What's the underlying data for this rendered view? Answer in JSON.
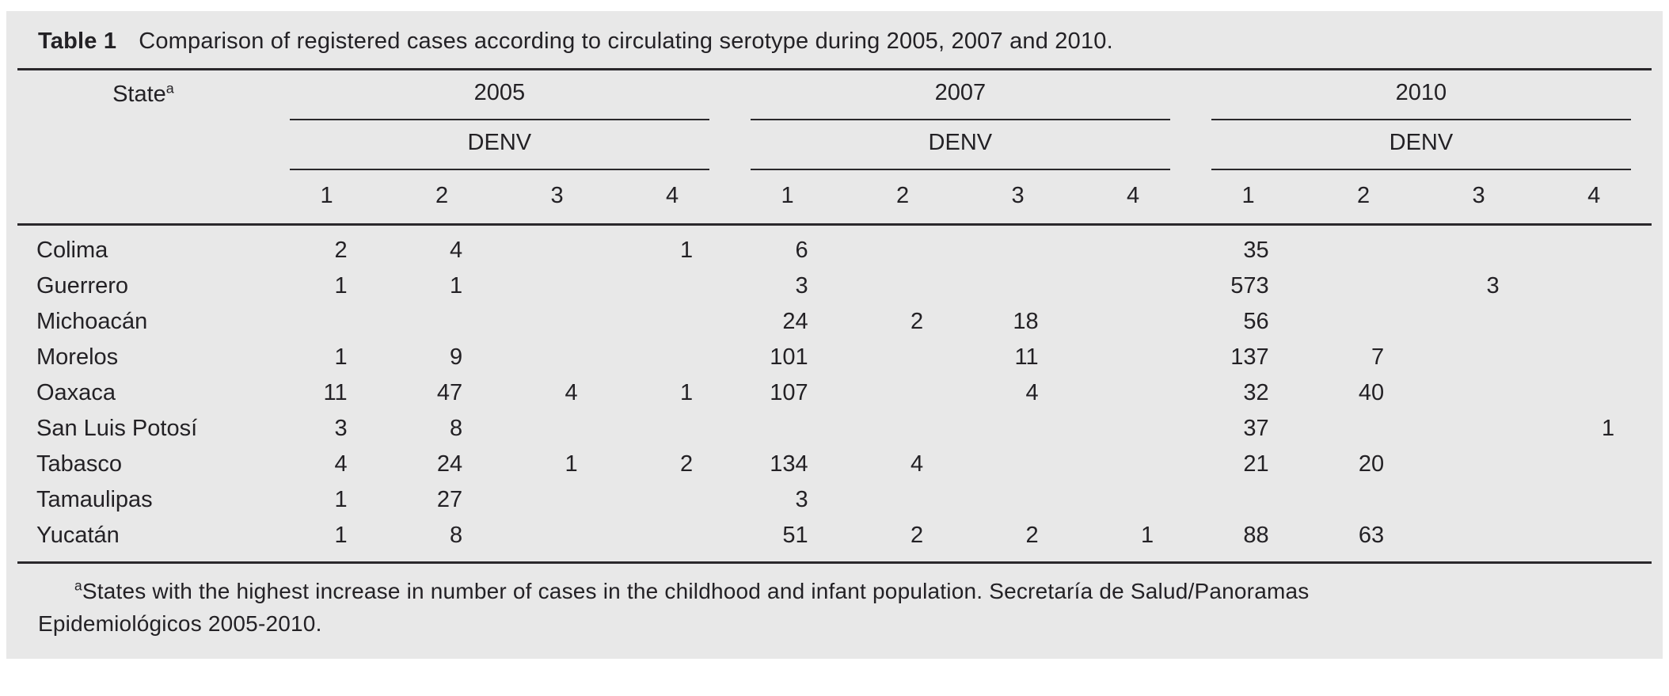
{
  "caption": {
    "label": "Table 1",
    "text": "Comparison of registered cases according to circulating serotype during 2005, 2007 and 2010."
  },
  "table": {
    "state_header": {
      "label": "State",
      "sup": "a"
    },
    "year_groups": [
      {
        "year": "2005",
        "sub": "DENV",
        "serotypes": [
          "1",
          "2",
          "3",
          "4"
        ]
      },
      {
        "year": "2007",
        "sub": "DENV",
        "serotypes": [
          "1",
          "2",
          "3",
          "4"
        ]
      },
      {
        "year": "2010",
        "sub": "DENV",
        "serotypes": [
          "1",
          "2",
          "3",
          "4"
        ]
      }
    ],
    "rows": [
      {
        "state": "Colima",
        "values": [
          "2",
          "4",
          "",
          "1",
          "6",
          "",
          "",
          "",
          "35",
          "",
          "",
          ""
        ]
      },
      {
        "state": "Guerrero",
        "values": [
          "1",
          "1",
          "",
          "",
          "3",
          "",
          "",
          "",
          "573",
          "",
          "3",
          ""
        ]
      },
      {
        "state": "Michoacán",
        "values": [
          "",
          "",
          "",
          "",
          "24",
          "2",
          "18",
          "",
          "56",
          "",
          "",
          ""
        ]
      },
      {
        "state": "Morelos",
        "values": [
          "1",
          "9",
          "",
          "",
          "101",
          "",
          "11",
          "",
          "137",
          "7",
          "",
          ""
        ]
      },
      {
        "state": "Oaxaca",
        "values": [
          "11",
          "47",
          "4",
          "1",
          "107",
          "",
          "4",
          "",
          "32",
          "40",
          "",
          ""
        ]
      },
      {
        "state": "San Luis Potosí",
        "values": [
          "3",
          "8",
          "",
          "",
          "",
          "",
          "",
          "",
          "37",
          "",
          "",
          "1"
        ]
      },
      {
        "state": "Tabasco",
        "values": [
          "4",
          "24",
          "1",
          "2",
          "134",
          "4",
          "",
          "",
          "21",
          "20",
          "",
          ""
        ]
      },
      {
        "state": "Tamaulipas",
        "values": [
          "1",
          "27",
          "",
          "",
          "3",
          "",
          "",
          "",
          "",
          "",
          "",
          ""
        ]
      },
      {
        "state": "Yucatán",
        "values": [
          "1",
          "8",
          "",
          "",
          "51",
          "2",
          "2",
          "1",
          "88",
          "63",
          "",
          ""
        ]
      }
    ]
  },
  "footnote": {
    "sup": "a",
    "line1": "States with the highest increase in number of cases in the childhood and infant population. Secretaría de Salud/Panoramas",
    "line2": "Epidemiológicos 2005-2010."
  },
  "colors": {
    "panel_background": "#e8e8e8",
    "text": "#232125",
    "rule": "#2a282b"
  }
}
